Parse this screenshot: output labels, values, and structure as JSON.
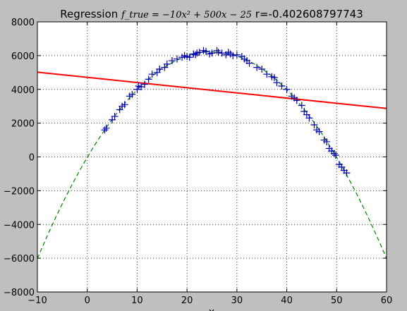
{
  "chart_data": {
    "type": "scatter",
    "title": {
      "prefix": "Regression ",
      "formula": "f_true = −10x² + 500x − 25",
      "suffix": " r=-0.402608797743"
    },
    "xlabel": "x",
    "ylabel": "",
    "xlim": [
      -10,
      60
    ],
    "ylim": [
      -8000,
      8000
    ],
    "xticks": [
      -10,
      0,
      10,
      20,
      30,
      40,
      50,
      60
    ],
    "yticks": [
      -8000,
      -6000,
      -4000,
      -2000,
      0,
      2000,
      4000,
      6000,
      8000
    ],
    "grid": true,
    "colors": {
      "background": "#bfbfbf",
      "axes_background": "#ffffff",
      "true_curve": "#008000",
      "regression_line": "#ff0000",
      "samples": "#0000aa"
    },
    "true_function": {
      "a": -10,
      "b": 500,
      "c": -25,
      "x_range": [
        -10,
        60
      ],
      "style": "dashed"
    },
    "regression_line": {
      "x": [
        -10,
        60
      ],
      "y": [
        5020,
        2870
      ]
    },
    "samples": {
      "marker": "plus",
      "x": [
        3.5,
        3.8,
        5.0,
        5.5,
        6.5,
        7.0,
        7.5,
        8.5,
        9.0,
        10.0,
        10.3,
        10.8,
        11.5,
        12.3,
        13.0,
        14.0,
        14.5,
        15.5,
        16.0,
        17.0,
        18.0,
        19.0,
        19.5,
        20.0,
        20.5,
        21.3,
        21.7,
        22.0,
        22.5,
        23.3,
        23.8,
        24.5,
        25.0,
        26.0,
        26.3,
        27.0,
        27.8,
        28.3,
        28.7,
        29.2,
        30.0,
        31.0,
        31.5,
        32.0,
        32.5,
        34.0,
        35.0,
        36.0,
        37.0,
        37.5,
        38.0,
        39.0,
        40.0,
        41.0,
        41.5,
        42.0,
        43.0,
        43.5,
        44.0,
        44.5,
        45.5,
        46.0,
        46.5,
        47.5,
        48.0,
        48.5,
        49.0,
        49.5,
        49.8,
        50.5,
        51.0,
        51.5,
        52.0
      ],
      "y": [
        1600,
        1700,
        2200,
        2400,
        2800,
        3000,
        3100,
        3600,
        3700,
        4000,
        4200,
        4150,
        4300,
        4600,
        4900,
        5000,
        5200,
        5300,
        5500,
        5700,
        5800,
        5900,
        6000,
        5950,
        5900,
        6100,
        6050,
        6150,
        6200,
        6300,
        6250,
        6100,
        6150,
        6300,
        6200,
        6150,
        6050,
        6200,
        6100,
        6000,
        6050,
        5950,
        5800,
        5700,
        5550,
        5300,
        5200,
        4900,
        4750,
        4700,
        4400,
        4200,
        4000,
        3600,
        3500,
        3350,
        3050,
        2700,
        2500,
        2300,
        1900,
        1600,
        1500,
        1000,
        900,
        500,
        350,
        200,
        100,
        -450,
        -600,
        -800,
        -950
      ]
    }
  }
}
